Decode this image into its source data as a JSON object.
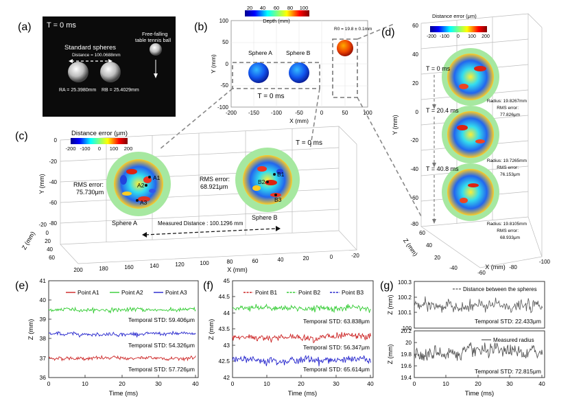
{
  "panel_labels": {
    "a": "(a)",
    "b": "(b)",
    "c": "(c)",
    "d": "(d)",
    "e": "(e)",
    "f": "(f)",
    "g": "(g)"
  },
  "a": {
    "time": "T = 0 ms",
    "standard": "Standard spheres",
    "distance": "Distance = 100.0688mm",
    "ball": "Free-falling",
    "ball2": "table tennis ball",
    "ra": "RA = 25.3980mm",
    "rb": "RB = 25.4029mm"
  },
  "b": {
    "colorbar_ticks": [
      "20",
      "40",
      "60",
      "80",
      "100"
    ],
    "colorbar_label": "Depth (mm)",
    "r0": "R0 = 19.8 ± 0.1mm",
    "sphere_a": "Sphere A",
    "sphere_b": "Sphere B",
    "time": "T = 0 ms",
    "yticks": [
      "100",
      "50",
      "0",
      "-50",
      "-100"
    ],
    "xticks": [
      "-200",
      "-150",
      "-100",
      "-50",
      "0",
      "50",
      "100"
    ],
    "xlabel": "X (mm)",
    "ylabel": "Y (mm)"
  },
  "c": {
    "colorbar_label": "Distance error (μm)",
    "colorbar_ticks": [
      "-200",
      "-100",
      "0",
      "100",
      "200"
    ],
    "time": "T = 0 ms",
    "rms_a": "RMS error:",
    "rms_a_val": "75.730μm",
    "rms_b": "RMS error:",
    "rms_b_val": "68.921μm",
    "sphere_a": "Sphere A",
    "sphere_b": "Sphere B",
    "measured": "Measured Distance : 100.1296 mm",
    "yticks": [
      "0",
      "-20",
      "-40",
      "-60",
      "-80"
    ],
    "zticks": [
      "-20",
      "0",
      "20",
      "40",
      "60"
    ],
    "xticks": [
      "200",
      "180",
      "160",
      "140",
      "120",
      "100",
      "80",
      "60",
      "40",
      "20",
      "0",
      "-20"
    ],
    "xlabel": "X (mm)",
    "ylabel": "Y (mm)",
    "zlabel": "Z (mm)",
    "points_a": [
      "A1",
      "A2",
      "A3"
    ],
    "points_b": [
      "B1",
      "B2",
      "B3"
    ]
  },
  "d": {
    "colorbar_label": "Distance error (μm)",
    "colorbar_ticks": [
      "-200",
      "-100",
      "0",
      "100",
      "200"
    ],
    "t0": "T = 0 ms",
    "t1": "T = 20.4 ms",
    "t2": "T = 40.8 ms",
    "r1": "Radius: 19.8267mm",
    "e1": "RMS error:",
    "e1v": "77.826μm",
    "r2": "Radius: 19.7265mm",
    "e2": "RMS error:",
    "e2v": "76.153μm",
    "r3": "Radius: 19.8105mm",
    "e3": "RMS error:",
    "e3v": "68.933μm",
    "yticks": [
      "60",
      "40",
      "20",
      "0",
      "-20",
      "-40",
      "-60",
      "-80"
    ],
    "zticks": [
      "60",
      "40",
      "20"
    ],
    "xticks": [
      "-40",
      "-60",
      "-80",
      "-100"
    ],
    "ylabel": "Y (mm)",
    "zlabel": "Z (mm)",
    "xlabel": "X (mm)"
  },
  "e": {
    "legend": [
      "Point A1",
      "Point A2",
      "Point A3"
    ],
    "std": [
      "Temporal STD: 59.406μm",
      "Temporal STD: 54.326μm",
      "Temporal STD: 57.726μm"
    ],
    "yticks": [
      "41",
      "40",
      "39",
      "38",
      "37",
      "36"
    ],
    "xticks": [
      "0",
      "10",
      "20",
      "30",
      "40"
    ],
    "xlabel": "Time (ms)",
    "ylabel": "Z (mm)"
  },
  "f": {
    "legend": [
      "Point B1",
      "Point B2",
      "Point B3"
    ],
    "std": [
      "Temporal STD: 63.838μm",
      "Temporal STD: 56.347μm",
      "Temporal STD: 65.614μm"
    ],
    "yticks": [
      "45",
      "44.5",
      "44",
      "43.5",
      "43",
      "42.5",
      "42"
    ],
    "xticks": [
      "0",
      "10",
      "20",
      "30",
      "40"
    ],
    "xlabel": "Time (ms)",
    "ylabel": "Z (mm)"
  },
  "g": {
    "legend1": "Distance between the spheres",
    "legend2": "Measured radius",
    "std1": "Temporal STD: 22.433μm",
    "std2": "Temporal STD: 72.815μm",
    "yticks1": [
      "100.3",
      "100.2",
      "100.1",
      "100"
    ],
    "yticks2": [
      "20.2",
      "20",
      "19.8",
      "19.6",
      "19.4"
    ],
    "xticks": [
      "0",
      "10",
      "20",
      "30",
      "40"
    ],
    "xlabel": "Time (ms)",
    "ylabel": "Z (mm)"
  },
  "colors": {
    "a1": "#cc2222",
    "a2": "#33cc33",
    "a3": "#2222cc",
    "gray": "#555555",
    "green": "#a6e8a0"
  },
  "chart_data": [
    {
      "type": "line",
      "id": "e",
      "x_range": [
        0,
        40.8
      ],
      "ylim": [
        36,
        41
      ],
      "series": [
        {
          "name": "Point A1",
          "mean": 37.0,
          "std": 0.057726
        },
        {
          "name": "Point A2",
          "mean": 39.5,
          "std": 0.059406
        },
        {
          "name": "Point A3",
          "mean": 38.25,
          "std": 0.054326
        }
      ],
      "xlabel": "Time (ms)",
      "ylabel": "Z (mm)"
    },
    {
      "type": "line",
      "id": "f",
      "x_range": [
        0,
        40.8
      ],
      "ylim": [
        42,
        45
      ],
      "series": [
        {
          "name": "Point B1",
          "mean": 43.25,
          "std": 0.063838
        },
        {
          "name": "Point B2",
          "mean": 44.15,
          "std": 0.056347
        },
        {
          "name": "Point B3",
          "mean": 42.55,
          "std": 0.065614
        }
      ],
      "xlabel": "Time (ms)",
      "ylabel": "Z (mm)"
    },
    {
      "type": "line",
      "id": "g1",
      "x_range": [
        0,
        40.8
      ],
      "ylim": [
        100,
        100.3
      ],
      "series": [
        {
          "name": "Distance between the spheres",
          "mean": 100.14,
          "std": 0.022433
        }
      ],
      "ylabel": "Z (mm)"
    },
    {
      "type": "line",
      "id": "g2",
      "x_range": [
        0,
        40.8
      ],
      "ylim": [
        19.4,
        20.2
      ],
      "series": [
        {
          "name": "Measured radius",
          "mean": 19.82,
          "std": 0.072815
        }
      ],
      "xlabel": "Time (ms)",
      "ylabel": "Z (mm)"
    }
  ]
}
